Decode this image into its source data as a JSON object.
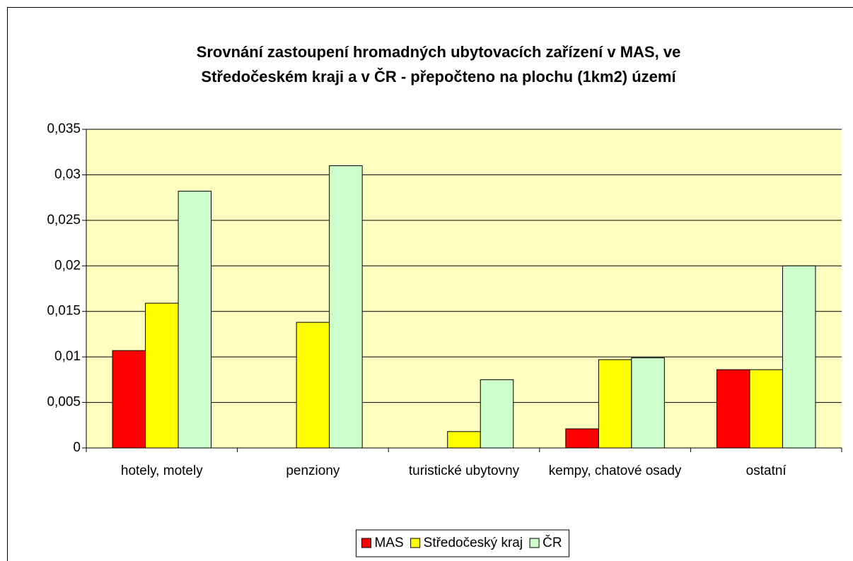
{
  "chart_data": {
    "type": "bar",
    "title": [
      "Srovnání zastoupení hromadných ubytovacích zařízení v MAS, ve",
      "Středočeském kraji a v ČR - přepočteno na plochu (1km2) území"
    ],
    "categories": [
      "hotely, motely",
      "penziony",
      "turistické ubytovny",
      "kempy, chatové osady",
      "ostatní"
    ],
    "series": [
      {
        "name": "MAS",
        "color": "#ff0000",
        "values": [
          0.0107,
          0,
          0,
          0.0021,
          0.0086
        ]
      },
      {
        "name": "Středočeský kraj",
        "color": "#ffff00",
        "values": [
          0.0159,
          0.0138,
          0.0018,
          0.0097,
          0.0086
        ]
      },
      {
        "name": "ČR",
        "color": "#ccffcc",
        "values": [
          0.0282,
          0.031,
          0.0075,
          0.0099,
          0.02
        ]
      }
    ],
    "ylim": [
      0,
      0.035
    ],
    "yticks": [
      0,
      {
        "value": 0.005,
        "label": "0,005"
      },
      {
        "value": 0.01,
        "label": "0,01"
      },
      {
        "value": 0.015,
        "label": "0,015"
      },
      {
        "value": 0.02,
        "label": "0,02"
      },
      {
        "value": 0.025,
        "label": "0,025"
      },
      {
        "value": 0.03,
        "label": "0,03"
      },
      {
        "value": 0.035,
        "label": "0,035"
      }
    ],
    "grid": true,
    "legend": "bottom",
    "plot_background": "#ffffc0"
  }
}
